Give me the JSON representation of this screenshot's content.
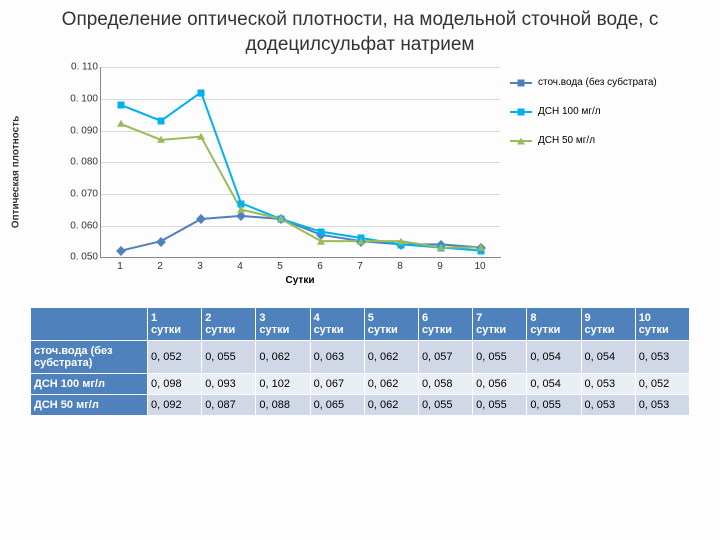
{
  "title": "Определение оптической плотности, на модельной сточной воде, с додецилсульфат натрием",
  "chart": {
    "type": "line",
    "ylabel": "Оптическая плотность",
    "xlabel": "Сутки",
    "ylim": [
      0.05,
      0.11
    ],
    "ytick_step": 0.01,
    "yticks_fmt": [
      "0. 050",
      "0. 060",
      "0. 070",
      "0. 080",
      "0. 090",
      "0. 100",
      "0. 110"
    ],
    "xcats": [
      "1",
      "2",
      "3",
      "4",
      "5",
      "6",
      "7",
      "8",
      "9",
      "10"
    ],
    "grid_color": "#d9d9d9",
    "background_color": "#fdfdfd",
    "line_width": 2,
    "marker_size": 7,
    "series": [
      {
        "name": "сточ.вода (без субстрата)",
        "color": "#4f81bd",
        "marker": "diamond",
        "values": [
          0.052,
          0.055,
          0.062,
          0.063,
          0.062,
          0.057,
          0.055,
          0.054,
          0.054,
          0.053
        ]
      },
      {
        "name": "ДСН 100 мг/л",
        "color": "#00b0f0",
        "marker": "square",
        "values": [
          0.098,
          0.093,
          0.102,
          0.067,
          0.062,
          0.058,
          0.056,
          0.054,
          0.053,
          0.052
        ]
      },
      {
        "name": "ДСН 50 мг/л",
        "color": "#9bbb59",
        "marker": "triangle",
        "values": [
          0.092,
          0.087,
          0.088,
          0.065,
          0.062,
          0.055,
          0.055,
          0.055,
          0.053,
          0.053
        ]
      }
    ]
  },
  "table": {
    "col_prefix": "сутки",
    "columns": [
      "1",
      "2",
      "3",
      "4",
      "5",
      "6",
      "7",
      "8",
      "9",
      "10"
    ],
    "rows": [
      {
        "label": "сточ.вода (без субстрата)",
        "cells": [
          "0, 052",
          "0, 055",
          "0, 062",
          "0, 063",
          "0, 062",
          "0, 057",
          "0, 055",
          "0, 054",
          "0, 054",
          "0, 053"
        ]
      },
      {
        "label": "ДСН 100 мг/л",
        "cells": [
          "0, 098",
          "0, 093",
          "0, 102",
          "0, 067",
          "0, 062",
          "0, 058",
          "0, 056",
          "0, 054",
          "0, 053",
          "0, 052"
        ]
      },
      {
        "label": "ДСН 50 мг/л",
        "cells": [
          "0, 092",
          "0, 087",
          "0, 088",
          "0, 065",
          "0, 062",
          "0, 055",
          "0, 055",
          "0, 055",
          "0, 053",
          "0, 053"
        ]
      }
    ],
    "header_bg": "#4f81bd",
    "header_fg": "#ffffff",
    "row_bg_odd": "#d0d8e8",
    "row_bg_even": "#e9edf4"
  }
}
